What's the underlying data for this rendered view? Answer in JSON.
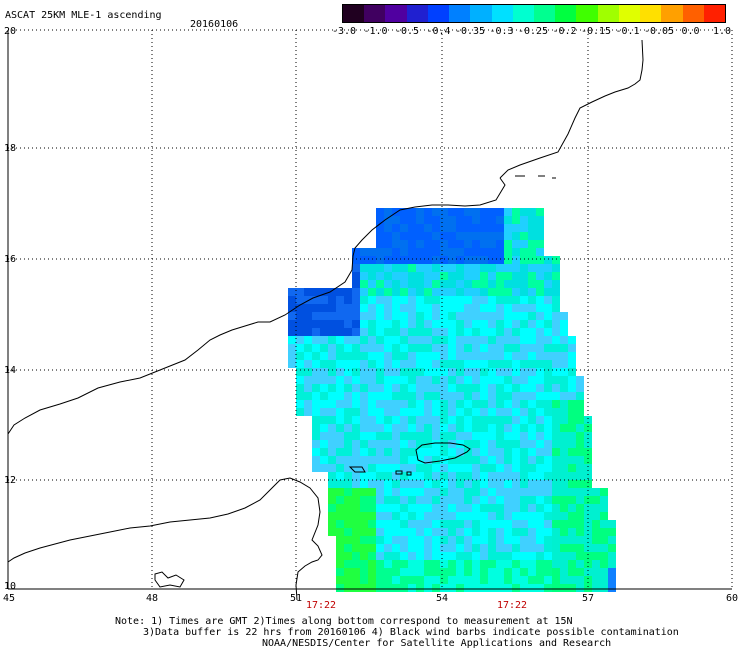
{
  "header": {
    "title": "ASCAT 25KM MLE-1 ascending",
    "date": "20160106"
  },
  "colorbar": {
    "labels": [
      "-3.0",
      "-1.0",
      "-0.5",
      "-0.4",
      "-0.35",
      "-0.3",
      "-0.25",
      "-0.2",
      "-0.15",
      "-0.1",
      "-0.05",
      "0.0",
      "1.0"
    ],
    "colors": [
      "#200020",
      "#400060",
      "#5000a0",
      "#2020d0",
      "#0040ff",
      "#0080ff",
      "#00b0ff",
      "#00e0ff",
      "#00ffd0",
      "#00ff90",
      "#00ff40",
      "#40ff00",
      "#a0ff00",
      "#e0ff00",
      "#ffe000",
      "#ffa000",
      "#ff6000",
      "#ff2000"
    ]
  },
  "map": {
    "lat_labels": [
      "20",
      "18",
      "16",
      "14",
      "12",
      "10"
    ],
    "lon_labels": [
      "45",
      "48",
      "51",
      "54",
      "57",
      "60"
    ],
    "time_labels": [
      "17:22",
      "17:22"
    ],
    "lat_range": [
      10,
      20
    ],
    "lon_range": [
      45,
      60
    ],
    "grid": "dotted"
  },
  "footer": {
    "note_line1": "Note: 1) Times are GMT 2)Times along bottom correspond to measurement at 15N",
    "note_line2": "3)Data buffer is 22 hrs from 20160106 4) Black wind barbs indicate possible contamination",
    "credit": "NOAA/NESDIS/Center for Satellite Applications and Research"
  }
}
